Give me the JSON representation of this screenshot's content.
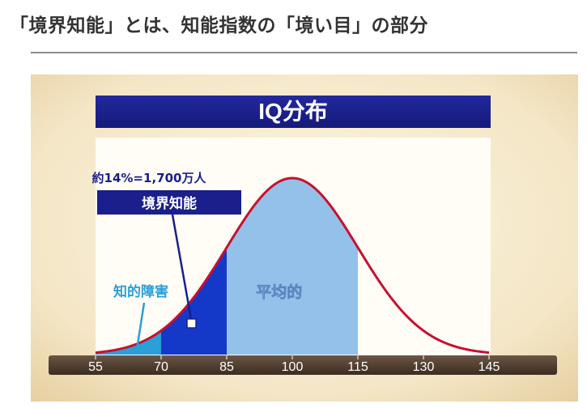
{
  "page": {
    "heading": "「境界知能」とは、知能指数の「境い目」の部分"
  },
  "chart_data": {
    "type": "area",
    "title": "IQ分布",
    "x_ticks": [
      55,
      70,
      85,
      100,
      115,
      130,
      145
    ],
    "xlim": [
      55,
      145
    ],
    "distribution": {
      "mean": 100,
      "sd": 15
    },
    "regions": [
      {
        "label": "知的障害",
        "x_from": 55,
        "x_to": 70,
        "color": "#2a9fd8"
      },
      {
        "label": "境界知能",
        "x_from": 70,
        "x_to": 85,
        "color": "#1438c8"
      },
      {
        "label": "平均的",
        "x_from": 85,
        "x_to": 115,
        "color": "#93c1ea"
      }
    ],
    "annotations": {
      "borderline_share": "約14%=1,700万人",
      "borderline_label": "境界知能",
      "disability_label": "知的障害",
      "average_label": "平均的"
    },
    "curve_color": "#c8102e",
    "title_bar_color": "#1a1f8c"
  }
}
